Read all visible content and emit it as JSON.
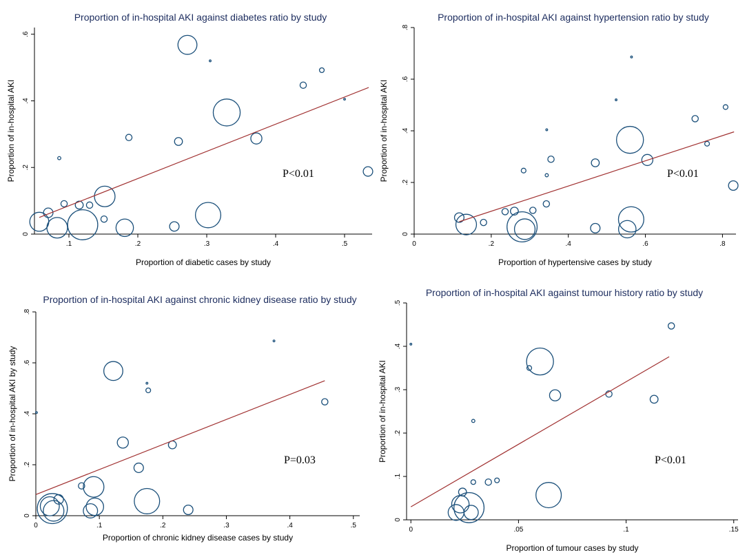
{
  "chart_data": [
    {
      "type": "scatter",
      "title": "Proportion of in-hospital AKI against diabetes ratio by study",
      "xlabel": "Proportion of diabetic cases by study",
      "ylabel": "Proportion of in-hospital AKI",
      "xlim": [
        0.05,
        0.54
      ],
      "ylim": [
        0,
        0.62
      ],
      "xticks": [
        0.1,
        0.2,
        0.3,
        0.4,
        0.5
      ],
      "xtick_labels": [
        ".1",
        ".2",
        ".3",
        ".4",
        ".5"
      ],
      "yticks": [
        0,
        0.2,
        0.4,
        0.6
      ],
      "ytick_labels": [
        "0",
        ".2",
        ".4",
        ".6"
      ],
      "annotation": "P<0.01",
      "fit_line": {
        "x": [
          0.057,
          0.535
        ],
        "y": [
          0.05,
          0.44
        ]
      },
      "points": [
        {
          "x": 0.057,
          "y": 0.037,
          "weight": 12
        },
        {
          "x": 0.07,
          "y": 0.064,
          "weight": 6
        },
        {
          "x": 0.083,
          "y": 0.019,
          "weight": 13
        },
        {
          "x": 0.086,
          "y": 0.228,
          "weight": 2
        },
        {
          "x": 0.093,
          "y": 0.091,
          "weight": 4
        },
        {
          "x": 0.115,
          "y": 0.087,
          "weight": 5
        },
        {
          "x": 0.12,
          "y": 0.028,
          "weight": 19
        },
        {
          "x": 0.13,
          "y": 0.087,
          "weight": 4
        },
        {
          "x": 0.151,
          "y": 0.045,
          "weight": 4
        },
        {
          "x": 0.152,
          "y": 0.113,
          "weight": 13
        },
        {
          "x": 0.181,
          "y": 0.019,
          "weight": 11
        },
        {
          "x": 0.187,
          "y": 0.29,
          "weight": 4
        },
        {
          "x": 0.253,
          "y": 0.023,
          "weight": 6
        },
        {
          "x": 0.259,
          "y": 0.278,
          "weight": 5
        },
        {
          "x": 0.272,
          "y": 0.568,
          "weight": 12
        },
        {
          "x": 0.302,
          "y": 0.057,
          "weight": 16
        },
        {
          "x": 0.305,
          "y": 0.52,
          "weight": 1
        },
        {
          "x": 0.329,
          "y": 0.365,
          "weight": 17
        },
        {
          "x": 0.372,
          "y": 0.287,
          "weight": 7
        },
        {
          "x": 0.44,
          "y": 0.447,
          "weight": 4
        },
        {
          "x": 0.467,
          "y": 0.492,
          "weight": 3
        },
        {
          "x": 0.5,
          "y": 0.405,
          "weight": 1
        },
        {
          "x": 0.534,
          "y": 0.188,
          "weight": 6
        }
      ]
    },
    {
      "type": "scatter",
      "title": "Proportion of in-hospital AKI against hypertension ratio by study",
      "xlabel": "Proportion of hypertensive cases by study",
      "ylabel": "Proportion of in-hospital AKI",
      "xlim": [
        0,
        0.835
      ],
      "ylim": [
        0,
        0.8
      ],
      "xticks": [
        0,
        0.2,
        0.4,
        0.6,
        0.8
      ],
      "xtick_labels": [
        "0",
        ".2",
        ".4",
        ".6",
        ".8"
      ],
      "yticks": [
        0,
        0.2,
        0.4,
        0.6,
        0.8
      ],
      "ytick_labels": [
        "0",
        ".2",
        ".4",
        ".6",
        ".8"
      ],
      "annotation": "P<0.01",
      "fit_line": {
        "x": [
          0.117,
          0.83
        ],
        "y": [
          0.048,
          0.396
        ]
      },
      "points": [
        {
          "x": 0.117,
          "y": 0.064,
          "weight": 6
        },
        {
          "x": 0.135,
          "y": 0.037,
          "weight": 13
        },
        {
          "x": 0.18,
          "y": 0.045,
          "weight": 4
        },
        {
          "x": 0.236,
          "y": 0.087,
          "weight": 4
        },
        {
          "x": 0.26,
          "y": 0.089,
          "weight": 5
        },
        {
          "x": 0.28,
          "y": 0.028,
          "weight": 19
        },
        {
          "x": 0.287,
          "y": 0.019,
          "weight": 13
        },
        {
          "x": 0.284,
          "y": 0.246,
          "weight": 3
        },
        {
          "x": 0.308,
          "y": 0.092,
          "weight": 4
        },
        {
          "x": 0.343,
          "y": 0.117,
          "weight": 4
        },
        {
          "x": 0.344,
          "y": 0.228,
          "weight": 2
        },
        {
          "x": 0.344,
          "y": 0.404,
          "weight": 1
        },
        {
          "x": 0.355,
          "y": 0.29,
          "weight": 4
        },
        {
          "x": 0.47,
          "y": 0.276,
          "weight": 5
        },
        {
          "x": 0.47,
          "y": 0.023,
          "weight": 6
        },
        {
          "x": 0.524,
          "y": 0.52,
          "weight": 1
        },
        {
          "x": 0.553,
          "y": 0.019,
          "weight": 11
        },
        {
          "x": 0.56,
          "y": 0.365,
          "weight": 17
        },
        {
          "x": 0.563,
          "y": 0.057,
          "weight": 16
        },
        {
          "x": 0.564,
          "y": 0.686,
          "weight": 1
        },
        {
          "x": 0.605,
          "y": 0.287,
          "weight": 7
        },
        {
          "x": 0.729,
          "y": 0.447,
          "weight": 4
        },
        {
          "x": 0.76,
          "y": 0.35,
          "weight": 3
        },
        {
          "x": 0.808,
          "y": 0.492,
          "weight": 3
        },
        {
          "x": 0.828,
          "y": 0.188,
          "weight": 6
        }
      ]
    },
    {
      "type": "scatter",
      "title": "Proportion of in-hospital AKI against chronic kidney disease ratio by study",
      "xlabel": "Proportion of chronic kidney disease cases by study",
      "ylabel": "Proportion of in-hospital AKI by study",
      "xlim": [
        0,
        0.51
      ],
      "ylim": [
        0,
        0.8
      ],
      "xticks": [
        0,
        0.1,
        0.2,
        0.3,
        0.4,
        0.5
      ],
      "xtick_labels": [
        "0",
        ".1",
        ".2",
        ".3",
        ".4",
        ".5"
      ],
      "yticks": [
        0,
        0.2,
        0.4,
        0.6,
        0.8
      ],
      "ytick_labels": [
        "0",
        ".2",
        ".4",
        ".6",
        ".8"
      ],
      "annotation": "P=0.03",
      "fit_line": {
        "x": [
          0,
          0.455
        ],
        "y": [
          0.083,
          0.53
        ]
      },
      "points": [
        {
          "x": 0.001,
          "y": 0.405,
          "weight": 1
        },
        {
          "x": 0.022,
          "y": 0.037,
          "weight": 12
        },
        {
          "x": 0.026,
          "y": 0.028,
          "weight": 19
        },
        {
          "x": 0.028,
          "y": 0.019,
          "weight": 13
        },
        {
          "x": 0.036,
          "y": 0.064,
          "weight": 6
        },
        {
          "x": 0.072,
          "y": 0.117,
          "weight": 4
        },
        {
          "x": 0.086,
          "y": 0.019,
          "weight": 9
        },
        {
          "x": 0.091,
          "y": 0.113,
          "weight": 13
        },
        {
          "x": 0.093,
          "y": 0.035,
          "weight": 11
        },
        {
          "x": 0.122,
          "y": 0.568,
          "weight": 12
        },
        {
          "x": 0.137,
          "y": 0.287,
          "weight": 7
        },
        {
          "x": 0.162,
          "y": 0.188,
          "weight": 6
        },
        {
          "x": 0.175,
          "y": 0.52,
          "weight": 1
        },
        {
          "x": 0.177,
          "y": 0.492,
          "weight": 3
        },
        {
          "x": 0.175,
          "y": 0.057,
          "weight": 16
        },
        {
          "x": 0.215,
          "y": 0.278,
          "weight": 5
        },
        {
          "x": 0.24,
          "y": 0.023,
          "weight": 6
        },
        {
          "x": 0.375,
          "y": 0.686,
          "weight": 1
        },
        {
          "x": 0.455,
          "y": 0.447,
          "weight": 4
        }
      ]
    },
    {
      "type": "scatter",
      "title": "Proportion of in-hospital AKI against tumour history ratio by study",
      "xlabel": "Proportion of tumour cases by study",
      "ylabel": "Proportion of in-hospital AKI",
      "xlim": [
        -0.002,
        0.152
      ],
      "ylim": [
        0,
        0.5
      ],
      "xticks": [
        0,
        0.05,
        0.1,
        0.15
      ],
      "xtick_labels": [
        "0",
        ".05",
        ".1",
        ".15"
      ],
      "yticks": [
        0,
        0.1,
        0.2,
        0.3,
        0.4,
        0.5
      ],
      "ytick_labels": [
        "0",
        ".1",
        ".2",
        ".3",
        ".4",
        ".5"
      ],
      "annotation": "P<0.01",
      "fit_line": {
        "x": [
          0,
          0.12
        ],
        "y": [
          0.03,
          0.376
        ]
      },
      "points": [
        {
          "x": 0.0,
          "y": 0.405,
          "weight": 1
        },
        {
          "x": 0.021,
          "y": 0.017,
          "weight": 10
        },
        {
          "x": 0.023,
          "y": 0.036,
          "weight": 11
        },
        {
          "x": 0.024,
          "y": 0.064,
          "weight": 5
        },
        {
          "x": 0.027,
          "y": 0.028,
          "weight": 19
        },
        {
          "x": 0.028,
          "y": 0.017,
          "weight": 9
        },
        {
          "x": 0.029,
          "y": 0.228,
          "weight": 2
        },
        {
          "x": 0.029,
          "y": 0.087,
          "weight": 3
        },
        {
          "x": 0.036,
          "y": 0.087,
          "weight": 4
        },
        {
          "x": 0.04,
          "y": 0.091,
          "weight": 3
        },
        {
          "x": 0.055,
          "y": 0.35,
          "weight": 3
        },
        {
          "x": 0.06,
          "y": 0.365,
          "weight": 17
        },
        {
          "x": 0.064,
          "y": 0.057,
          "weight": 16
        },
        {
          "x": 0.067,
          "y": 0.287,
          "weight": 7
        },
        {
          "x": 0.092,
          "y": 0.29,
          "weight": 4
        },
        {
          "x": 0.113,
          "y": 0.278,
          "weight": 5
        },
        {
          "x": 0.121,
          "y": 0.447,
          "weight": 4
        }
      ]
    }
  ]
}
